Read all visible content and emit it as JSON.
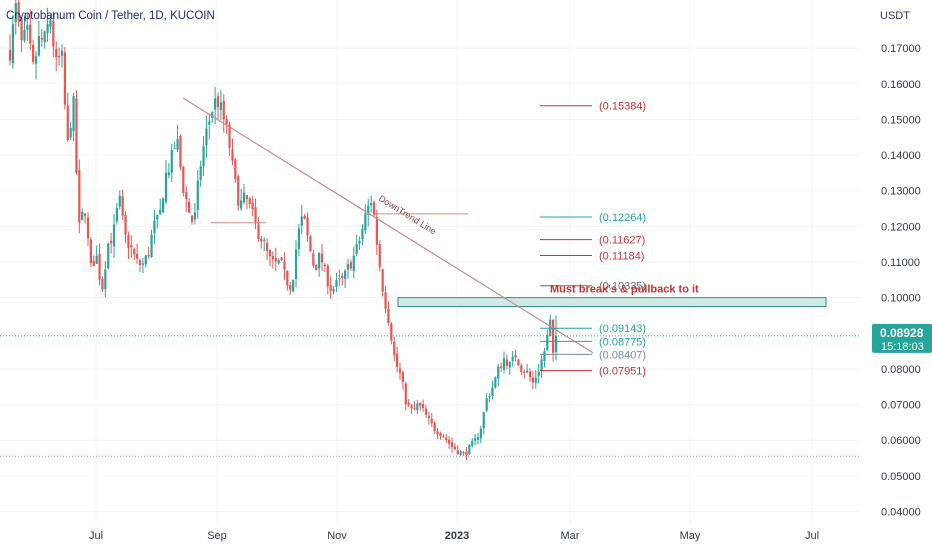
{
  "chart_data": {
    "type": "candlestick",
    "title": "Cryptobanum Coin / Tether, 1D, KUCOIN",
    "unit": "USDT",
    "y_ticks": [
      "0.17000",
      "0.16000",
      "0.15000",
      "0.14000",
      "0.13000",
      "0.12000",
      "0.11000",
      "0.10000",
      "0.09000",
      "0.08000",
      "0.07000",
      "0.06000",
      "0.05000",
      "0.04000"
    ],
    "x_ticks": [
      "Jul",
      "Sep",
      "Nov",
      "2023",
      "Mar",
      "May",
      "Jul"
    ],
    "ylim": [
      0.0365,
      0.1835
    ],
    "grid": true,
    "current_price": "0.08928",
    "countdown": "15:18:03",
    "colors": {
      "up": "#26a69a",
      "down": "#ef5350",
      "trendline": "#c98a8a",
      "zone_fill": "#cfe9e4",
      "zone_border": "#2f8f84",
      "badge": "#26a69a"
    },
    "price_path": [
      [
        0.1695,
        0.181
      ],
      [
        0.171,
        0.174
      ],
      [
        0.164,
        0.172
      ],
      [
        0.172,
        0.179
      ],
      [
        0.165,
        0.168
      ],
      [
        0.142,
        0.156
      ],
      [
        0.119,
        0.126
      ],
      [
        0.108,
        0.112
      ],
      [
        0.102,
        0.115
      ],
      [
        0.118,
        0.128
      ],
      [
        0.117,
        0.114
      ],
      [
        0.11,
        0.109
      ],
      [
        0.112,
        0.12
      ],
      [
        0.122,
        0.134
      ],
      [
        0.138,
        0.145
      ],
      [
        0.132,
        0.125
      ],
      [
        0.12,
        0.136
      ],
      [
        0.145,
        0.152
      ],
      [
        0.156,
        0.151
      ],
      [
        0.145,
        0.133
      ],
      [
        0.126,
        0.128
      ],
      [
        0.124,
        0.119
      ],
      [
        0.116,
        0.111
      ],
      [
        0.109,
        0.11
      ],
      [
        0.105,
        0.103
      ],
      [
        0.117,
        0.123
      ],
      [
        0.115,
        0.108
      ],
      [
        0.112,
        0.106
      ],
      [
        0.102,
        0.104
      ],
      [
        0.105,
        0.109
      ],
      [
        0.112,
        0.117
      ],
      [
        0.124,
        0.128
      ],
      [
        0.113,
        0.101
      ],
      [
        0.093,
        0.082
      ],
      [
        0.078,
        0.07
      ],
      [
        0.068,
        0.07
      ],
      [
        0.068,
        0.065
      ],
      [
        0.063,
        0.062
      ],
      [
        0.06,
        0.058
      ],
      [
        0.057,
        0.056
      ],
      [
        0.058,
        0.06
      ],
      [
        0.064,
        0.072
      ],
      [
        0.075,
        0.08
      ],
      [
        0.083,
        0.081
      ],
      [
        0.084,
        0.08
      ],
      [
        0.079,
        0.076
      ],
      [
        0.08,
        0.085
      ],
      [
        0.093,
        0.0893
      ]
    ],
    "sr_lines": [
      {
        "value": 0.121,
        "from": 0.245,
        "to": 0.31
      },
      {
        "value": 0.1235,
        "from": 0.435,
        "to": 0.545
      },
      {
        "value": 0.0555,
        "from": 0.0,
        "to": 1.0,
        "dotted": true
      }
    ],
    "trendline": {
      "label": "DownTrend Line",
      "from_price": 0.156,
      "to_price": 0.0845
    },
    "zone": {
      "low": 0.0975,
      "high": 0.1,
      "label": "Must break's & pullback to it"
    },
    "fib_levels": [
      {
        "label": "(0.15384)",
        "value": 0.15384,
        "color": "#d32f2f"
      },
      {
        "label": "(0.12264)",
        "value": 0.12264,
        "color": "#26a69a"
      },
      {
        "label": "(0.11627)",
        "value": 0.11627,
        "color": "#d32f2f"
      },
      {
        "label": "(0.11184)",
        "value": 0.11184,
        "color": "#d32f2f"
      },
      {
        "label": "(0.10335)",
        "value": 0.10335,
        "color": "#5f6f86"
      },
      {
        "label": "(0.09143)",
        "value": 0.09143,
        "color": "#26a69a"
      },
      {
        "label": "(0.08775)",
        "value": 0.08775,
        "color": "#26a69a"
      },
      {
        "label": "(0.08407)",
        "value": 0.08407,
        "color": "#6f8fa8"
      },
      {
        "label": "(0.07951)",
        "value": 0.07951,
        "color": "#d32f2f"
      }
    ]
  }
}
